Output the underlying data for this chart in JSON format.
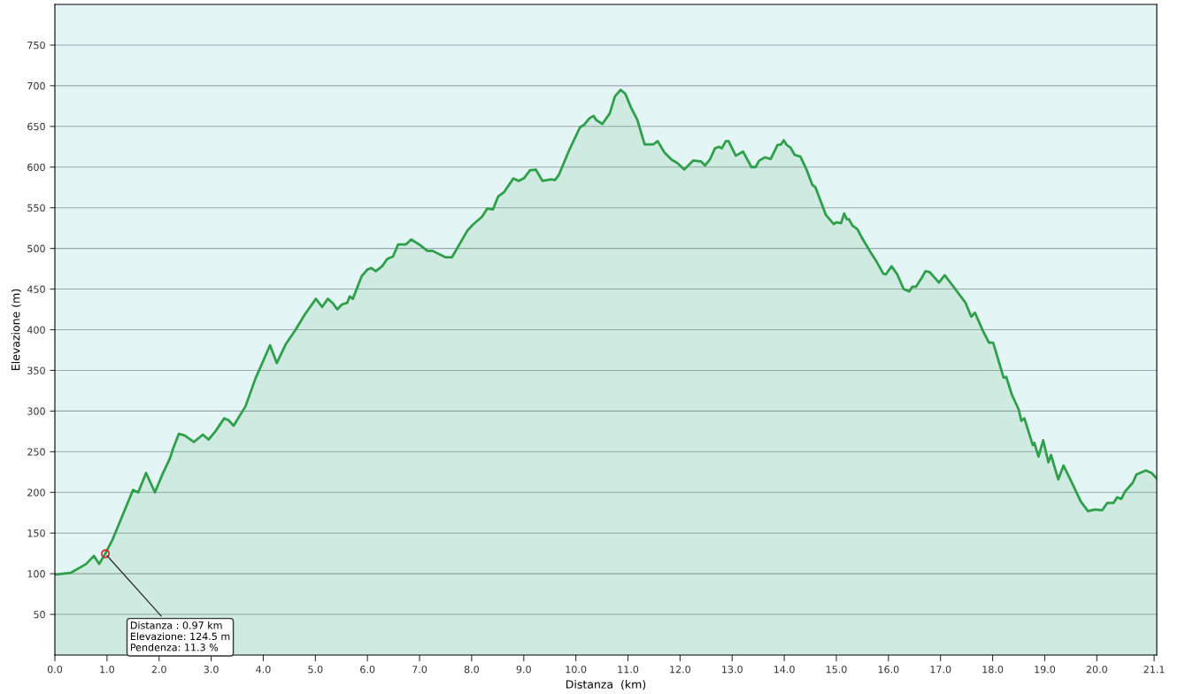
{
  "chart_data": {
    "type": "area",
    "xlabel": "Distanza  (km)",
    "ylabel": "Elevazione (m)",
    "xlim": [
      0,
      21.15
    ],
    "xticks": [
      {
        "value": 0,
        "label": "0.0"
      },
      {
        "value": 1,
        "label": "1.0"
      },
      {
        "value": 2,
        "label": "2.0"
      },
      {
        "value": 3,
        "label": "3.0"
      },
      {
        "value": 4,
        "label": "4.0"
      },
      {
        "value": 5,
        "label": "5.0"
      },
      {
        "value": 6,
        "label": "6.0"
      },
      {
        "value": 7,
        "label": "7.0"
      },
      {
        "value": 8,
        "label": "8.0"
      },
      {
        "value": 9,
        "label": "9.0"
      },
      {
        "value": 10,
        "label": "10.0"
      },
      {
        "value": 11,
        "label": "11.0"
      },
      {
        "value": 12,
        "label": "12.0"
      },
      {
        "value": 13,
        "label": "13.0"
      },
      {
        "value": 14,
        "label": "14.0"
      },
      {
        "value": 15,
        "label": "15.0"
      },
      {
        "value": 16,
        "label": "16.0"
      },
      {
        "value": 17,
        "label": "17.0"
      },
      {
        "value": 18,
        "label": "18.0"
      },
      {
        "value": 19,
        "label": "19.0"
      },
      {
        "value": 20,
        "label": "20.0"
      },
      {
        "value": 21.1,
        "label": "21.1"
      }
    ],
    "ylim": [
      0,
      800
    ],
    "yticks": [
      50,
      100,
      150,
      200,
      250,
      300,
      350,
      400,
      450,
      500,
      550,
      600,
      650,
      700,
      750
    ],
    "grid": "y",
    "legend": false,
    "series": [
      {
        "color": "#2ea04a",
        "x": [
          0,
          0.3,
          0.6,
          0.75,
          0.85,
          0.97,
          1.1,
          1.5,
          1.6,
          1.75,
          1.92,
          2.07,
          2.21,
          2.27,
          2.38,
          2.49,
          2.67,
          2.84,
          2.95,
          3.08,
          3.25,
          3.33,
          3.43,
          3.66,
          3.85,
          4.13,
          4.26,
          4.43,
          4.62,
          4.8,
          5.01,
          5.13,
          5.24,
          5.33,
          5.42,
          5.51,
          5.61,
          5.66,
          5.72,
          5.89,
          6.0,
          6.07,
          6.16,
          6.28,
          6.38,
          6.49,
          6.59,
          6.74,
          6.84,
          7.01,
          7.15,
          7.25,
          7.5,
          7.62,
          7.92,
          8.02,
          8.2,
          8.3,
          8.41,
          8.51,
          8.62,
          8.8,
          8.9,
          9.0,
          9.12,
          9.23,
          9.36,
          9.52,
          9.6,
          9.67,
          9.88,
          10.08,
          10.16,
          10.26,
          10.34,
          10.39,
          10.51,
          10.65,
          10.75,
          10.86,
          10.95,
          11.06,
          11.18,
          11.32,
          11.49,
          11.57,
          11.7,
          11.84,
          11.95,
          12.08,
          12.25,
          12.4,
          12.48,
          12.57,
          12.67,
          12.75,
          12.8,
          12.88,
          12.93,
          13.07,
          13.21,
          13.37,
          13.45,
          13.52,
          13.63,
          13.74,
          13.87,
          13.94,
          13.99,
          14.05,
          14.12,
          14.2,
          14.31,
          14.42,
          14.54,
          14.6,
          14.8,
          14.95,
          15.0,
          15.09,
          15.15,
          15.2,
          15.24,
          15.31,
          15.4,
          15.51,
          15.66,
          15.77,
          15.9,
          15.95,
          16.06,
          16.17,
          16.29,
          16.4,
          16.46,
          16.53,
          16.64,
          16.71,
          16.79,
          16.86,
          16.97,
          17.08,
          17.26,
          17.48,
          17.59,
          17.66,
          17.81,
          17.93,
          18.01,
          18.21,
          18.26,
          18.37,
          18.5,
          18.55,
          18.61,
          18.77,
          18.8,
          18.88,
          18.97,
          19.07,
          19.12,
          19.26,
          19.36,
          19.52,
          19.69,
          19.83,
          19.96,
          20.1,
          20.2,
          20.32,
          20.39,
          20.47,
          20.54,
          20.69,
          20.76,
          20.94,
          21.05,
          21.15
        ],
        "values": [
          99,
          101,
          112,
          122,
          112,
          125,
          141,
          203,
          200,
          224,
          200,
          223,
          242,
          254,
          272,
          270,
          262,
          271,
          265,
          275,
          291,
          289,
          282,
          306,
          340,
          381,
          359,
          382,
          400,
          419,
          438,
          428,
          438,
          433,
          425,
          431,
          433,
          441,
          438,
          466,
          474,
          476,
          472,
          478,
          487,
          490,
          505,
          505,
          511,
          504,
          497,
          497,
          489,
          489,
          522,
          529,
          539,
          549,
          548,
          564,
          569,
          586,
          583,
          586,
          596,
          597,
          583,
          585,
          584,
          590,
          622,
          649,
          652,
          660,
          663,
          658,
          653,
          666,
          687,
          695,
          690,
          673,
          658,
          628,
          628,
          632,
          618,
          609,
          605,
          597,
          608,
          607,
          602,
          609,
          623,
          625,
          623,
          632,
          632,
          614,
          619,
          600,
          600,
          608,
          612,
          610,
          627,
          628,
          633,
          627,
          624,
          615,
          613,
          598,
          578,
          575,
          541,
          530,
          532,
          531,
          543,
          536,
          536,
          528,
          524,
          511,
          495,
          484,
          469,
          468,
          478,
          468,
          450,
          447,
          453,
          453,
          464,
          472,
          471,
          466,
          458,
          467,
          452,
          433,
          416,
          421,
          399,
          384,
          384,
          341,
          342,
          320,
          302,
          288,
          291,
          258,
          261,
          244,
          264,
          237,
          246,
          216,
          233,
          212,
          189,
          177,
          179,
          178,
          187,
          187,
          194,
          192,
          201,
          212,
          222,
          227,
          224,
          217
        ]
      }
    ],
    "annotations": [
      {
        "text": "Distanza : 0.97 km\nElevazione: 124.5 m\nPendenza: 11.3 %",
        "x": 0.97,
        "y": 124.5
      }
    ]
  }
}
